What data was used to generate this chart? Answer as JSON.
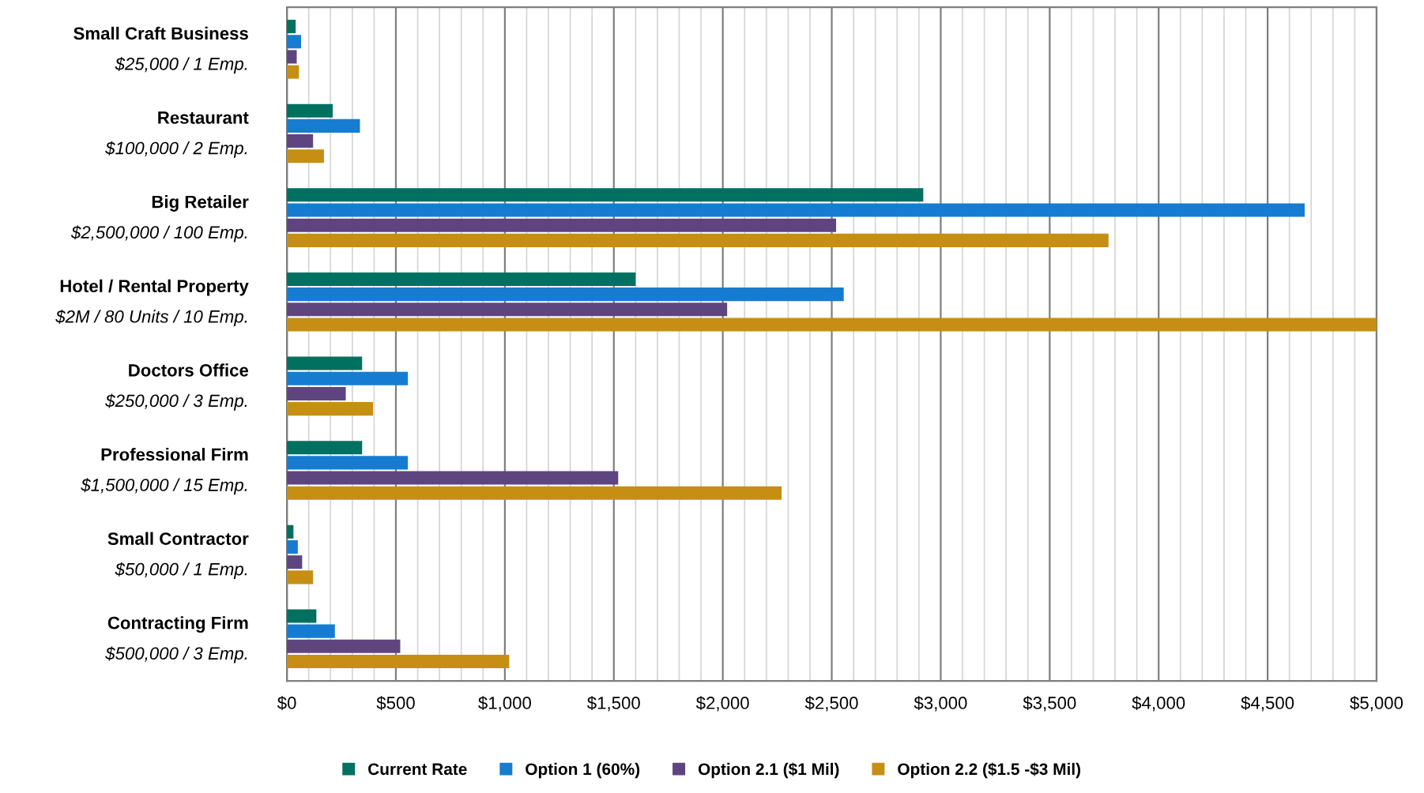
{
  "chart_data": {
    "type": "bar",
    "orientation": "horizontal",
    "categories": [
      "Small Craft Business\n$25,000 / 1 Emp.",
      "Restaurant\n$100,000 / 2 Emp.",
      "Big Retailer\n$2,500,000 / 100 Emp.",
      "Hotel / Rental Property\n$2M / 80 Units / 10 Emp.",
      "Doctors Office\n$250,000 / 3 Emp.",
      "Professional Firm\n$1,500,000 / 15 Emp.",
      "Small Contractor\n$50,000 / 1 Emp.",
      "Contracting Firm\n$500,000 / 3 Emp."
    ],
    "series": [
      {
        "name": "Current Rate",
        "color": "#007060",
        "values": [
          40,
          210,
          2920,
          1600,
          345,
          345,
          30,
          135
        ]
      },
      {
        "name": "Option 1 (60%)",
        "color": "#167cd1",
        "values": [
          65,
          335,
          4670,
          2555,
          555,
          555,
          50,
          220
        ]
      },
      {
        "name": "Option 2.1 ($1 Mil)",
        "color": "#5e4580",
        "values": [
          45,
          120,
          2520,
          2020,
          270,
          1520,
          70,
          520
        ]
      },
      {
        "name": "Option 2.2 ($1.5 -$3 Mil)",
        "color": "#c68f14",
        "values": [
          55,
          170,
          3770,
          5000,
          395,
          2270,
          120,
          1020
        ]
      }
    ],
    "xlim": [
      0,
      5000
    ],
    "xticks": [
      {
        "value": 0,
        "label": "$0"
      },
      {
        "value": 100,
        "label": null
      },
      {
        "value": 200,
        "label": null
      },
      {
        "value": 300,
        "label": null
      },
      {
        "value": 400,
        "label": null
      },
      {
        "value": 500,
        "label": "$500"
      },
      {
        "value": 600,
        "label": null
      },
      {
        "value": 700,
        "label": null
      },
      {
        "value": 800,
        "label": null
      },
      {
        "value": 900,
        "label": null
      },
      {
        "value": 1000,
        "label": "$1,000"
      },
      {
        "value": 1100,
        "label": null
      },
      {
        "value": 1200,
        "label": null
      },
      {
        "value": 1300,
        "label": null
      },
      {
        "value": 1400,
        "label": null
      },
      {
        "value": 1500,
        "label": "$1,500"
      },
      {
        "value": 1600,
        "label": null
      },
      {
        "value": 1700,
        "label": null
      },
      {
        "value": 1800,
        "label": null
      },
      {
        "value": 1900,
        "label": null
      },
      {
        "value": 2000,
        "label": "$2,000"
      },
      {
        "value": 2100,
        "label": null
      },
      {
        "value": 2200,
        "label": null
      },
      {
        "value": 2300,
        "label": null
      },
      {
        "value": 2400,
        "label": null
      },
      {
        "value": 2500,
        "label": "$2,500"
      },
      {
        "value": 2600,
        "label": null
      },
      {
        "value": 2700,
        "label": null
      },
      {
        "value": 2800,
        "label": null
      },
      {
        "value": 2900,
        "label": null
      },
      {
        "value": 3000,
        "label": "$3,000"
      },
      {
        "value": 3100,
        "label": null
      },
      {
        "value": 3200,
        "label": null
      },
      {
        "value": 3300,
        "label": null
      },
      {
        "value": 3400,
        "label": null
      },
      {
        "value": 3500,
        "label": "$3,500"
      },
      {
        "value": 3600,
        "label": null
      },
      {
        "value": 3700,
        "label": null
      },
      {
        "value": 3800,
        "label": null
      },
      {
        "value": 3900,
        "label": null
      },
      {
        "value": 4000,
        "label": "$4,000"
      },
      {
        "value": 4100,
        "label": null
      },
      {
        "value": 4200,
        "label": null
      },
      {
        "value": 4300,
        "label": null
      },
      {
        "value": 4400,
        "label": null
      },
      {
        "value": 4500,
        "label": "$4,500"
      },
      {
        "value": 4600,
        "label": null
      },
      {
        "value": 4700,
        "label": null
      },
      {
        "value": 4800,
        "label": null
      },
      {
        "value": 4900,
        "label": null
      },
      {
        "value": 5000,
        "label": "$5,000"
      }
    ],
    "grid": "x",
    "legend": "bottom"
  }
}
